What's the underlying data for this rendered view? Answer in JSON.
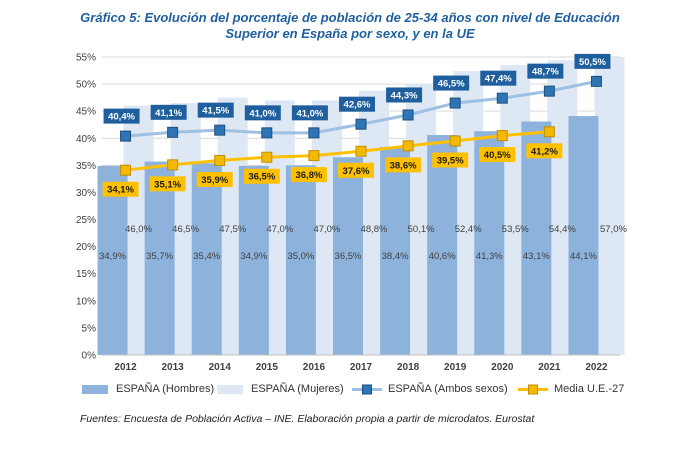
{
  "title_line1": "Gráfico 5: Evolución del porcentaje de población de 25-34 años con nivel de Educación",
  "title_line2": "Superior en España por sexo, y en la UE",
  "source": "Fuentes: Encuesta de Población Activa – INE. Elaboración propia a partir de microdatos. Eurostat",
  "colors": {
    "hombres": "#8db3dd",
    "mujeres": "#dde8f4",
    "ambos_line": "#9ec0e3",
    "ambos_marker": "#2e75b6",
    "ambos_label_bg": "#1f5f9e",
    "ue_line": "#ffc000",
    "ue_marker": "#f5b800",
    "ue_label_bg": "#ffc000",
    "grid": "#d9d9d9"
  },
  "chart_data": {
    "type": "bar",
    "categories": [
      "2012",
      "2013",
      "2014",
      "2015",
      "2016",
      "2017",
      "2018",
      "2019",
      "2020",
      "2021",
      "2022"
    ],
    "ylim": [
      0,
      55
    ],
    "yticks": [
      "0%",
      "5%",
      "10%",
      "15%",
      "20%",
      "25%",
      "30%",
      "35%",
      "40%",
      "45%",
      "50%",
      "55%"
    ],
    "series": [
      {
        "name": "ESPAÑA (Hombres)",
        "kind": "bar",
        "values": [
          34.9,
          35.7,
          35.4,
          34.9,
          35.0,
          36.5,
          38.4,
          40.6,
          41.3,
          43.1,
          44.1
        ],
        "labels": [
          "34,9%",
          "35,7%",
          "35,4%",
          "34,9%",
          "35,0%",
          "36,5%",
          "38,4%",
          "40,6%",
          "41,3%",
          "43,1%",
          "44,1%"
        ]
      },
      {
        "name": "ESPAÑA (Mujeres)",
        "kind": "bar",
        "values": [
          46.0,
          46.5,
          47.5,
          47.0,
          47.0,
          48.8,
          50.1,
          52.4,
          53.5,
          54.4,
          57.0
        ],
        "labels": [
          "46,0%",
          "46,5%",
          "47,5%",
          "47,0%",
          "47,0%",
          "48,8%",
          "50,1%",
          "52,4%",
          "53,5%",
          "54,4%",
          "57,0%"
        ]
      },
      {
        "name": "ESPAÑA (Ambos sexos)",
        "kind": "line",
        "values": [
          40.4,
          41.1,
          41.5,
          41.0,
          41.0,
          42.6,
          44.3,
          46.5,
          47.4,
          48.7,
          50.5
        ],
        "labels": [
          "40,4%",
          "41,1%",
          "41,5%",
          "41,0%",
          "41,0%",
          "42,6%",
          "44,3%",
          "46,5%",
          "47,4%",
          "48,7%",
          "50,5%"
        ]
      },
      {
        "name": "Media U.E.-27",
        "kind": "line",
        "values": [
          34.1,
          35.1,
          35.9,
          36.5,
          36.8,
          37.6,
          38.6,
          39.5,
          40.5,
          41.2,
          null
        ],
        "labels": [
          "34,1%",
          "35,1%",
          "35,9%",
          "36,5%",
          "36,8%",
          "37,6%",
          "38,6%",
          "39,5%",
          "40,5%",
          "41,2%",
          null
        ]
      }
    ]
  }
}
